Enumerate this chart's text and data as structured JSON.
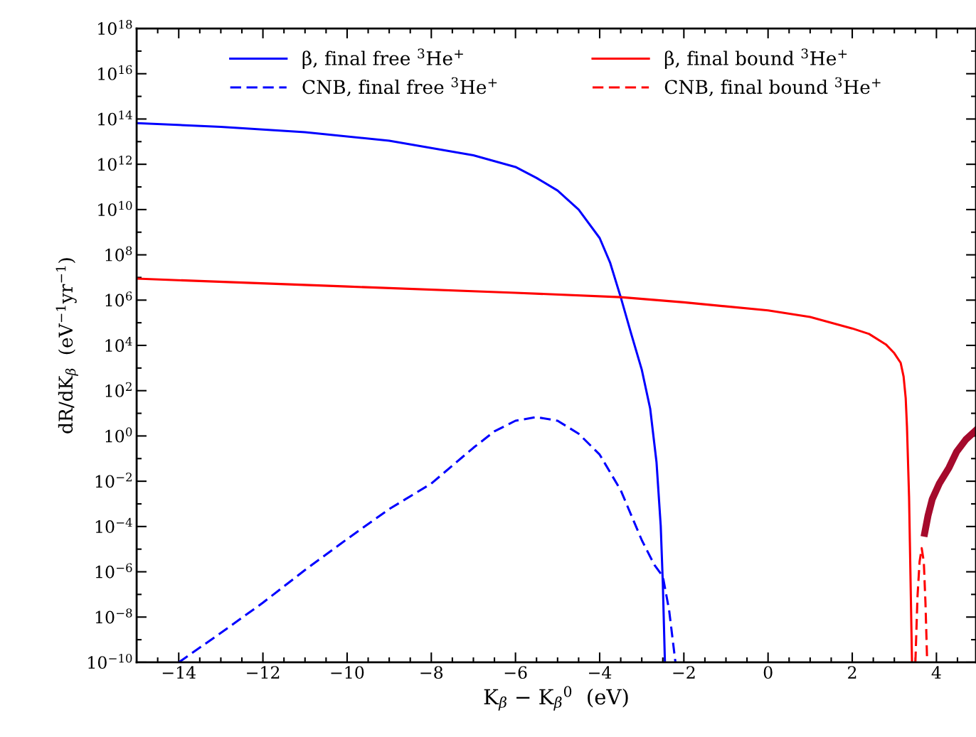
{
  "chart_data": {
    "type": "line",
    "xlabel": "K$_{β}$ − K$_{β}$$^{0}$  (eV)",
    "ylabel": "dR/dK$_{β}$  (eV$^{−1}$yr$^{−1}$)",
    "log": "y",
    "legend": "top",
    "grid": false,
    "xlim": [
      -15,
      4.94
    ],
    "ylim": [
      1e-10,
      1e+18
    ],
    "xticks": [
      {
        "value": -14,
        "label": "−14"
      },
      {
        "value": -12,
        "label": "−12"
      },
      {
        "value": -10,
        "label": "−10"
      },
      {
        "value": -8,
        "label": "−8"
      },
      {
        "value": -6,
        "label": "−6"
      },
      {
        "value": -4,
        "label": "−4"
      },
      {
        "value": -2,
        "label": "−2"
      },
      0,
      2,
      4,
      {
        "value": -14.5,
        "label": null
      },
      {
        "value": -13.5,
        "label": null
      },
      {
        "value": -13,
        "label": null
      },
      {
        "value": -12.5,
        "label": null
      },
      {
        "value": -11.5,
        "label": null
      },
      {
        "value": -11,
        "label": null
      },
      {
        "value": -10.5,
        "label": null
      },
      {
        "value": -9.5,
        "label": null
      },
      {
        "value": -9,
        "label": null
      },
      {
        "value": -8.5,
        "label": null
      },
      {
        "value": -7.5,
        "label": null
      },
      {
        "value": -7,
        "label": null
      },
      {
        "value": -6.5,
        "label": null
      },
      {
        "value": -5.5,
        "label": null
      },
      {
        "value": -5,
        "label": null
      },
      {
        "value": -4.5,
        "label": null
      },
      {
        "value": -3.5,
        "label": null
      },
      {
        "value": -3,
        "label": null
      },
      {
        "value": -2.5,
        "label": null
      },
      {
        "value": -1.5,
        "label": null
      },
      {
        "value": -1,
        "label": null
      },
      {
        "value": -0.5,
        "label": null
      },
      {
        "value": 0.5,
        "label": null
      },
      {
        "value": 1,
        "label": null
      },
      {
        "value": 1.5,
        "label": null
      },
      {
        "value": 2.5,
        "label": null
      },
      {
        "value": 3,
        "label": null
      },
      {
        "value": 3.5,
        "label": null
      },
      {
        "value": 4.5,
        "label": null
      }
    ],
    "yticks": [
      {
        "value": 1e-10,
        "label": "10$^{−10}$"
      },
      {
        "value": 1e-08,
        "label": "10$^{−8}$"
      },
      {
        "value": 1e-06,
        "label": "10$^{−6}$"
      },
      {
        "value": 0.0001,
        "label": "10$^{−4}$"
      },
      {
        "value": 0.01,
        "label": "10$^{−2}$"
      },
      {
        "value": 1,
        "label": "10$^{0}$"
      },
      {
        "value": 100.0,
        "label": "10$^{2}$"
      },
      {
        "value": 10000.0,
        "label": "10$^{4}$"
      },
      {
        "value": 1000000.0,
        "label": "10$^{6}$"
      },
      {
        "value": 100000000.0,
        "label": "10$^{8}$"
      },
      {
        "value": 10000000000.0,
        "label": "10$^{10}$"
      },
      {
        "value": 1000000000000.0,
        "label": "10$^{12}$"
      },
      {
        "value": 100000000000000.0,
        "label": "10$^{14}$"
      },
      {
        "value": 1e+16,
        "label": "10$^{16}$"
      },
      {
        "value": 1e+18,
        "label": "10$^{18}$"
      },
      {
        "value": 1e-09,
        "label": null
      },
      {
        "value": 1e-07,
        "label": null
      },
      {
        "value": 1e-05,
        "label": null
      },
      {
        "value": 0.001,
        "label": null
      },
      {
        "value": 0.1,
        "label": null
      },
      {
        "value": 10.0,
        "label": null
      },
      {
        "value": 1000.0,
        "label": null
      },
      {
        "value": 100000.0,
        "label": null
      },
      {
        "value": 10000000.0,
        "label": null
      },
      {
        "value": 1000000000.0,
        "label": null
      },
      {
        "value": 100000000000.0,
        "label": null
      },
      {
        "value": 10000000000000.0,
        "label": null
      },
      {
        "value": 1000000000000000.0,
        "label": null
      },
      {
        "value": 1e+17,
        "label": null
      }
    ],
    "series": [
      {
        "name": "β, final free $^{3}$He$^{+}$",
        "color": "#0000ff",
        "line_style": "solid",
        "x": [
          -15,
          -13,
          -11,
          -9,
          -7,
          -6,
          -5.5,
          -5,
          -4.5,
          -4,
          -3.75,
          -3.5,
          -3.25,
          -3,
          -2.8,
          -2.65,
          -2.55,
          -2.5,
          -2.45
        ],
        "values": [
          66000000000000.0,
          45000000000000.0,
          26000000000000.0,
          11000000000000.0,
          2500000000000.0,
          760000000000.0,
          250000000000.0,
          69000000000.0,
          10000000000.0,
          550000000.0,
          44000000.0,
          1350000.0,
          32000.0,
          850,
          16,
          0.07,
          0.00011,
          3.2e-07,
          1e-10
        ]
      },
      {
        "name": "CNB, final free $^{3}$He$^{+}$",
        "color": "#0000ff",
        "line_style": "dashed",
        "x": [
          -14,
          -13,
          -12,
          -11,
          -10,
          -9,
          -8,
          -7,
          -6.5,
          -6,
          -5.5,
          -5,
          -4.5,
          -4,
          -3.5,
          -3,
          -2.7,
          -2.5,
          -2.35,
          -2.2
        ],
        "values": [
          1e-10,
          2e-09,
          4.3e-08,
          1.2e-06,
          2.8e-05,
          0.00059,
          0.0079,
          0.3,
          1.6,
          4.7,
          6.8,
          4.7,
          1.26,
          0.15,
          0.004,
          2.5e-05,
          2e-06,
          6.3e-07,
          2e-08,
          1e-10
        ]
      },
      {
        "name": "β, final bound $^{3}$He$^{+}$",
        "color": "#ff0000",
        "line_style": "solid",
        "x": [
          -15,
          -10,
          -6,
          -3.5,
          -2,
          0,
          1,
          2,
          2.4,
          2.8,
          3.0,
          3.15,
          3.22,
          3.27,
          3.3,
          3.35,
          3.42
        ],
        "values": [
          8900000.0,
          4000000.0,
          2100000.0,
          1350000.0,
          800000.0,
          350000.0,
          180000.0,
          56000.0,
          32000.0,
          11000.0,
          4500.0,
          1700.0,
          420,
          47,
          2.6,
          0.002,
          1e-10
        ]
      },
      {
        "name": "CNB, final bound $^{3}$He$^{+}$",
        "color": "#ff0000",
        "line_style": "dashed",
        "x": [
          3.5,
          3.55,
          3.6,
          3.65,
          3.7,
          3.74,
          3.78
        ],
        "values": [
          1e-10,
          7.9e-08,
          2.8e-06,
          1.1e-05,
          2.8e-06,
          4e-08,
          1e-10
        ]
      },
      {
        "color": "#a50a2c",
        "line_style": "solid",
        "x": [
          3.72,
          3.8,
          3.9,
          4.07,
          4.3,
          4.48,
          4.7,
          4.94
        ],
        "values": [
          5e-05,
          0.0003,
          0.0016,
          0.008,
          0.04,
          0.2,
          0.7,
          1.8
        ]
      }
    ]
  }
}
